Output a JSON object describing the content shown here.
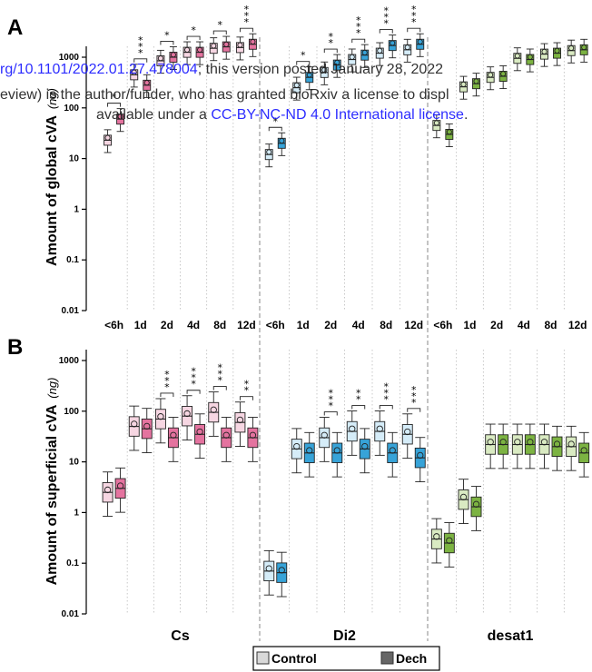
{
  "watermark": {
    "line1_link": "rg/10.1101/2022.01.27.478004",
    "line1_rest": "; this version posted January 28, 2022",
    "line2": "eview) is the author/funder, who has granted bioRxiv a license to displ",
    "line3_pre": "available under a ",
    "line3_link": "CC-BY-NC-ND 4.0 International license",
    "line3_post": "."
  },
  "legend": {
    "control": "Control",
    "dech": "Dech"
  },
  "colors": {
    "cs_light": "#f6d6e2",
    "cs_dark": "#e4739f",
    "di2_light": "#d5ecf8",
    "di2_dark": "#37a3d8",
    "desat1_light": "#d9eac2",
    "desat1_dark": "#7cb342"
  },
  "chart_data": [
    {
      "type": "box",
      "panel": "A",
      "ylabel": "Amount of global cVA",
      "yunit": "(ng)",
      "scale": "log",
      "ylim": [
        0.01,
        1000
      ],
      "yticks": [
        "0.01",
        "0.1",
        "1",
        "10",
        "100",
        "1000"
      ],
      "x_groups": [
        "Cs",
        "Di2",
        "desat1"
      ],
      "x_ages": [
        "<6h",
        "1d",
        "2d",
        "4d",
        "8d",
        "12d"
      ],
      "series": [
        {
          "group": "Cs",
          "treatment": "Control",
          "medians": [
            23,
            450,
            850,
            1250,
            1500,
            1550
          ]
        },
        {
          "group": "Cs",
          "treatment": "Dech",
          "medians": [
            60,
            280,
            1000,
            1250,
            1600,
            1800
          ]
        },
        {
          "group": "Di2",
          "treatment": "Control",
          "medians": [
            12,
            250,
            500,
            900,
            1200,
            1400
          ]
        },
        {
          "group": "Di2",
          "treatment": "Dech",
          "medians": [
            20,
            400,
            700,
            1100,
            1700,
            1800
          ]
        },
        {
          "group": "desat1",
          "treatment": "Control",
          "medians": [
            45,
            260,
            400,
            950,
            1150,
            1350
          ]
        },
        {
          "group": "desat1",
          "treatment": "Dech",
          "medians": [
            30,
            300,
            420,
            900,
            1200,
            1400
          ]
        }
      ],
      "significance": [
        {
          "group": "Cs",
          "age": "<6h",
          "stars": "*"
        },
        {
          "group": "Cs",
          "age": "1d",
          "stars": "***"
        },
        {
          "group": "Cs",
          "age": "2d",
          "stars": "*"
        },
        {
          "group": "Cs",
          "age": "4d",
          "stars": "*"
        },
        {
          "group": "Cs",
          "age": "8d",
          "stars": "*"
        },
        {
          "group": "Cs",
          "age": "12d",
          "stars": "***"
        },
        {
          "group": "Di2",
          "age": "<6h",
          "stars": "*"
        },
        {
          "group": "Di2",
          "age": "1d",
          "stars": "*"
        },
        {
          "group": "Di2",
          "age": "2d",
          "stars": "**"
        },
        {
          "group": "Di2",
          "age": "4d",
          "stars": "***"
        },
        {
          "group": "Di2",
          "age": "8d",
          "stars": "***"
        },
        {
          "group": "Di2",
          "age": "12d",
          "stars": "***"
        }
      ]
    },
    {
      "type": "box",
      "panel": "B",
      "ylabel": "Amount of superficial cVA",
      "yunit": "(ng)",
      "scale": "log",
      "ylim": [
        0.01,
        1000
      ],
      "yticks": [
        "0.01",
        "0.1",
        "1",
        "10",
        "100",
        "1000"
      ],
      "x_groups": [
        "Cs",
        "Di2",
        "desat1"
      ],
      "x_ages": [
        "<6h",
        "1d",
        "2d",
        "4d",
        "8d",
        "12d"
      ],
      "series": [
        {
          "group": "Cs",
          "treatment": "Control",
          "medians": [
            2.5,
            50,
            70,
            80,
            95,
            60
          ]
        },
        {
          "group": "Cs",
          "treatment": "Dech",
          "medians": [
            3,
            45,
            30,
            35,
            30,
            30
          ]
        },
        {
          "group": "Di2",
          "treatment": "Control",
          "medians": [
            0.07,
            18,
            30,
            40,
            40,
            35
          ]
        },
        {
          "group": "Di2",
          "treatment": "Dech",
          "medians": [
            0.065,
            15,
            15,
            18,
            15,
            12
          ]
        },
        {
          "group": "desat1",
          "treatment": "Control",
          "medians": [
            0.3,
            1.8,
            22,
            22,
            22,
            20
          ]
        },
        {
          "group": "desat1",
          "treatment": "Dech",
          "medians": [
            0.25,
            1.3,
            22,
            22,
            20,
            15
          ]
        }
      ],
      "significance": [
        {
          "group": "Cs",
          "age": "2d",
          "stars": "***"
        },
        {
          "group": "Cs",
          "age": "4d",
          "stars": "***"
        },
        {
          "group": "Cs",
          "age": "8d",
          "stars": "***"
        },
        {
          "group": "Cs",
          "age": "12d",
          "stars": "**"
        },
        {
          "group": "Di2",
          "age": "2d",
          "stars": "***"
        },
        {
          "group": "Di2",
          "age": "4d",
          "stars": "**"
        },
        {
          "group": "Di2",
          "age": "8d",
          "stars": "***"
        },
        {
          "group": "Di2",
          "age": "12d",
          "stars": "***"
        }
      ]
    }
  ]
}
